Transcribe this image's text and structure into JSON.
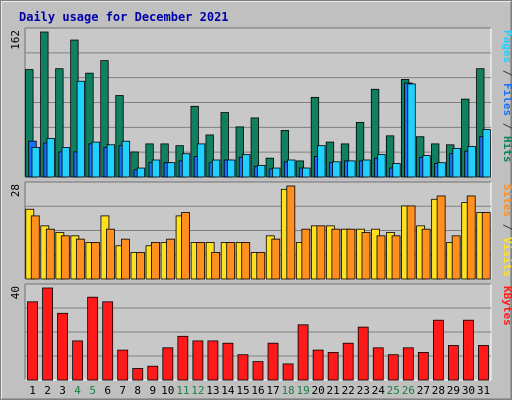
{
  "title": "Daily usage for December 2021",
  "colors": {
    "title": "#0000aa",
    "pages": "#108060",
    "files": "#1870ff",
    "hits": "#20d0ff",
    "sites": "#ff9020",
    "visits": "#ffe020",
    "kbytes": "#ff1a1a",
    "weekend": "#1a8040",
    "grid": "#808080",
    "panel": "#c0c0c0",
    "plot_bg": "#c8c8c8"
  },
  "chart_data": [
    {
      "type": "bar",
      "panel": "hits",
      "ymax": 162,
      "y_tick_label": "162",
      "right_label_parts": [
        {
          "text": "Pages",
          "color": "#20d0ff"
        },
        {
          "text": " / ",
          "color": "#404040"
        },
        {
          "text": "Files",
          "color": "#1870ff"
        },
        {
          "text": " / ",
          "color": "#404040"
        },
        {
          "text": "Hits",
          "color": "#108060"
        }
      ],
      "series": [
        {
          "name": "Hits",
          "color": "#108060",
          "values": [
            120,
            162,
            121,
            153,
            116,
            130,
            91,
            28,
            37,
            37,
            35,
            79,
            47,
            72,
            56,
            66,
            21,
            52,
            18,
            89,
            39,
            37,
            61,
            98,
            46,
            109,
            45,
            37,
            36,
            87,
            121
          ]
        },
        {
          "name": "Files",
          "color": "#1870ff",
          "values": [
            40,
            38,
            28,
            28,
            37,
            33,
            35,
            8,
            16,
            16,
            18,
            23,
            16,
            19,
            22,
            12,
            9,
            17,
            10,
            23,
            16,
            18,
            18,
            21,
            10,
            105,
            22,
            15,
            26,
            29,
            45
          ]
        },
        {
          "name": "Pages",
          "color": "#20d0ff",
          "values": [
            33,
            43,
            33,
            107,
            39,
            36,
            40,
            10,
            19,
            16,
            26,
            37,
            19,
            19,
            25,
            13,
            10,
            19,
            10,
            35,
            17,
            18,
            19,
            25,
            15,
            104,
            24,
            16,
            32,
            34,
            53
          ]
        }
      ]
    },
    {
      "type": "bar",
      "panel": "visits",
      "ymax": 28,
      "y_tick_label": "28",
      "right_label_parts": [
        {
          "text": "Sites",
          "color": "#ff9020"
        },
        {
          "text": " / ",
          "color": "#404040"
        },
        {
          "text": "Visits",
          "color": "#ffe020"
        }
      ],
      "series": [
        {
          "name": "Visits",
          "color": "#ffe020",
          "values": [
            21,
            16,
            14,
            13,
            11,
            19,
            10,
            8,
            10,
            11,
            19,
            11,
            11,
            11,
            11,
            8,
            13,
            27,
            11,
            16,
            16,
            15,
            15,
            15,
            14,
            22,
            16,
            24,
            11,
            23,
            20
          ]
        },
        {
          "name": "Sites",
          "color": "#ff9020",
          "values": [
            19,
            15,
            13,
            12,
            11,
            15,
            12,
            8,
            11,
            12,
            20,
            11,
            8,
            11,
            11,
            8,
            12,
            28,
            15,
            16,
            15,
            15,
            14,
            13,
            13,
            22,
            15,
            25,
            13,
            25,
            20
          ]
        }
      ]
    },
    {
      "type": "bar",
      "panel": "kbytes",
      "ymax": 40,
      "y_tick_label": "40",
      "right_label_parts": [
        {
          "text": "KBytes",
          "color": "#ff1a1a"
        }
      ],
      "series": [
        {
          "name": "KBytes",
          "color": "#ff1a1a",
          "values": [
            34,
            40,
            29,
            17,
            36,
            34,
            13,
            5,
            6,
            14,
            19,
            17,
            17,
            16,
            11,
            8,
            16,
            7,
            24,
            13,
            12,
            16,
            23,
            14,
            11,
            14,
            12,
            26,
            15,
            26,
            15
          ]
        }
      ]
    }
  ],
  "x_labels": [
    "1",
    "2",
    "3",
    "4",
    "5",
    "6",
    "7",
    "8",
    "9",
    "10",
    "11",
    "12",
    "13",
    "14",
    "15",
    "16",
    "17",
    "18",
    "19",
    "20",
    "21",
    "22",
    "23",
    "24",
    "25",
    "26",
    "27",
    "28",
    "29",
    "30",
    "31"
  ],
  "weekend_days": [
    4,
    5,
    11,
    12,
    18,
    19,
    25,
    26
  ]
}
